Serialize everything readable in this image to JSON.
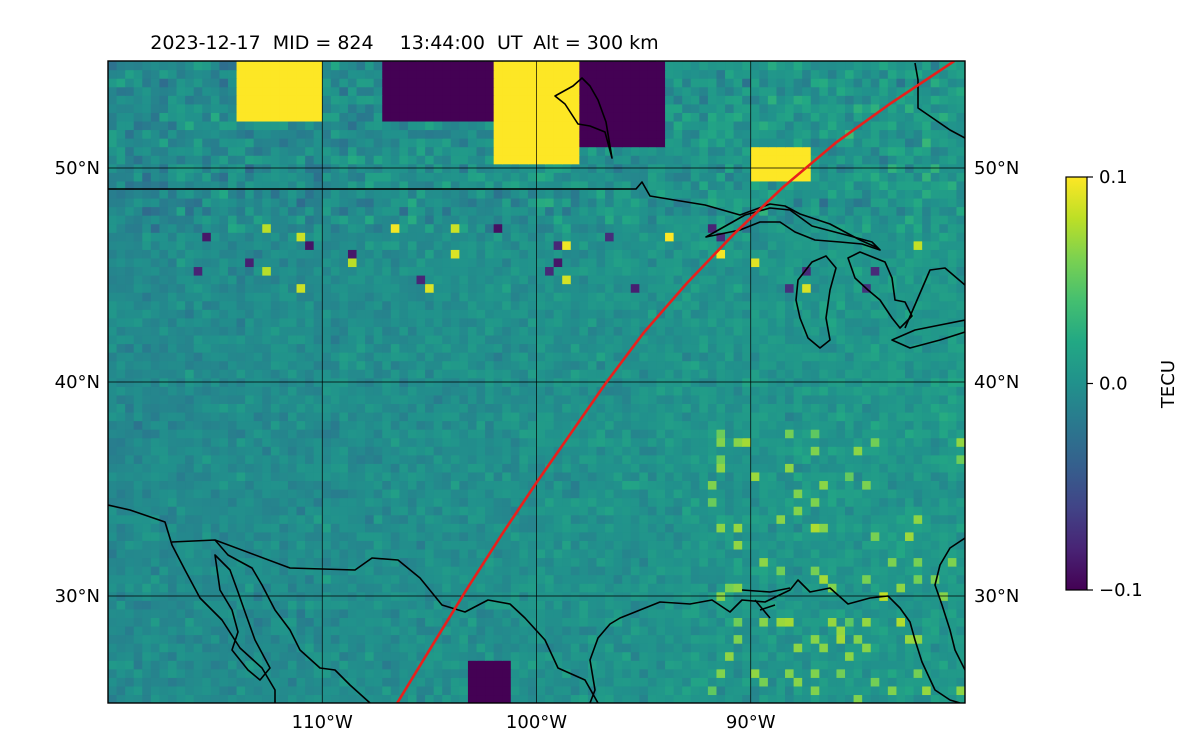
{
  "title": {
    "date": "2023-12-17",
    "mid": "MID = 824",
    "time": "13:44:00  UT",
    "alt": "Alt = 300 km"
  },
  "map": {
    "lon_range": [
      -120,
      -80
    ],
    "lat_range": [
      25,
      55
    ],
    "lon_ticks": [
      {
        "value": -110,
        "label": "110°W"
      },
      {
        "value": -100,
        "label": "100°W"
      },
      {
        "value": -90,
        "label": "90°W"
      }
    ],
    "lat_ticks": [
      {
        "value": 50,
        "label": "50°N"
      },
      {
        "value": 40,
        "label": "40°N"
      },
      {
        "value": 30,
        "label": "30°N"
      }
    ],
    "gridlines": true,
    "colormap": "viridis",
    "track_color": "#e8201c",
    "coast_color": "#000000"
  },
  "colorbar": {
    "label": "TECU",
    "ticks": [
      {
        "value": 0.1,
        "label": "0.1"
      },
      {
        "value": 0.0,
        "label": "0.0"
      },
      {
        "value": -0.1,
        "label": "−0.1"
      }
    ],
    "range": [
      -0.1,
      0.1
    ]
  },
  "chart_data": {
    "type": "heatmap",
    "title": "2023-12-17  MID = 824    13:44:00  UT  Alt = 300 km",
    "xlabel": "",
    "ylabel": "",
    "value_label": "TECU",
    "color_range": [
      -0.1,
      0.1
    ],
    "xlim": [
      -120,
      -80
    ],
    "ylim": [
      25,
      55
    ],
    "overlay_track": {
      "name": "",
      "lon": [
        -106.5,
        -104.8,
        -103.2,
        -101.6,
        -100.0,
        -98.4,
        -96.8,
        -95.0,
        -93.0,
        -90.8,
        -88.5,
        -86.0,
        -83.5,
        -80.5
      ],
      "lat": [
        25.0,
        27.8,
        30.4,
        32.9,
        35.3,
        37.6,
        39.9,
        42.3,
        44.6,
        46.9,
        49.1,
        51.2,
        53.0,
        55.0
      ]
    },
    "features": [
      {
        "label": "positive TEC patch",
        "lon": [
          -114,
          -110
        ],
        "lat": [
          52,
          55
        ]
      },
      {
        "label": "negative TEC patch",
        "lon": [
          -107,
          -102
        ],
        "lat": [
          52,
          55
        ]
      },
      {
        "label": "positive TEC patch",
        "lon": [
          -102,
          -98
        ],
        "lat": [
          50,
          55
        ]
      },
      {
        "label": "negative TEC patch",
        "lon": [
          -98,
          -94
        ],
        "lat": [
          51,
          55
        ]
      },
      {
        "label": "positive TEC patch",
        "lon": [
          -90,
          -87
        ],
        "lat": [
          49.5,
          51
        ]
      },
      {
        "label": "negative TEC patch",
        "lon": [
          -103,
          -101
        ],
        "lat": [
          25,
          27
        ]
      }
    ]
  }
}
